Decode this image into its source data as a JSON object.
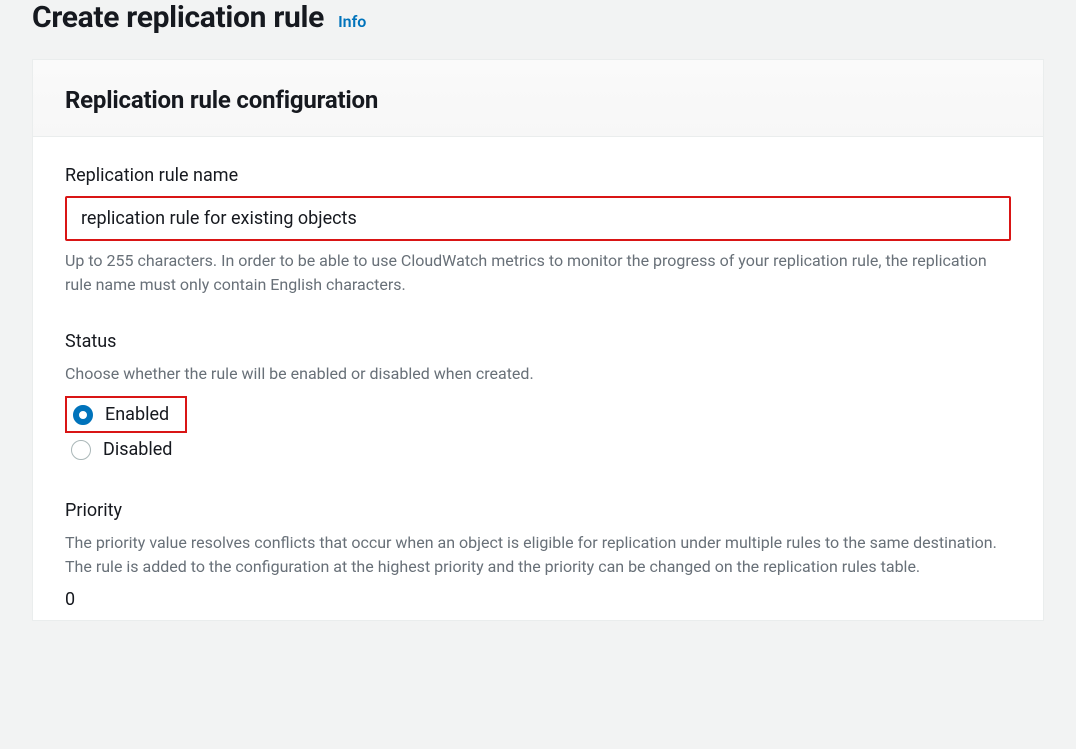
{
  "header": {
    "title": "Create replication rule",
    "info_label": "Info"
  },
  "panel": {
    "title": "Replication rule configuration"
  },
  "form": {
    "rule_name": {
      "label": "Replication rule name",
      "value": "replication rule for existing objects",
      "description": "Up to 255 characters. In order to be able to use CloudWatch metrics to monitor the progress of your replication rule, the replication rule name must only contain English characters.",
      "highlight_color": "#d91515"
    },
    "status": {
      "label": "Status",
      "description": "Choose whether the rule will be enabled or disabled when created.",
      "options": {
        "enabled": "Enabled",
        "disabled": "Disabled"
      },
      "selected": "enabled",
      "highlight_color": "#d91515",
      "radio_selected_color": "#0073bb",
      "radio_unselected_border": "#aab7b8"
    },
    "priority": {
      "label": "Priority",
      "description": "The priority value resolves conflicts that occur when an object is eligible for replication under multiple rules to the same destination. The rule is added to the configuration at the highest priority and the priority can be changed on the replication rules table.",
      "value": "0"
    }
  },
  "colors": {
    "page_background": "#f2f3f3",
    "panel_background": "#ffffff",
    "border": "#eaeded",
    "text_primary": "#16191f",
    "text_secondary": "#687078",
    "link": "#0073bb"
  }
}
